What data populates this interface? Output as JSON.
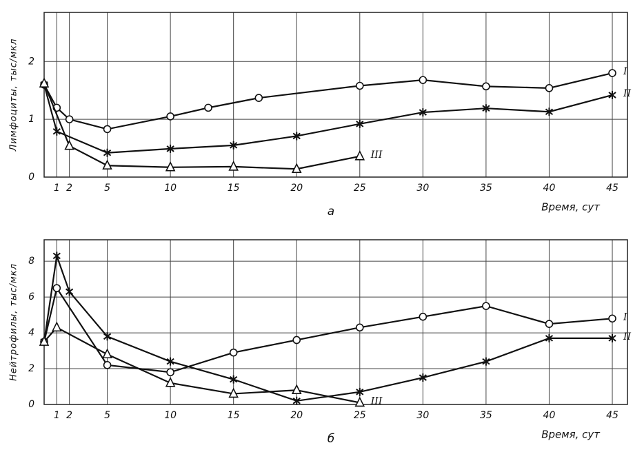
{
  "chart_data": [
    {
      "type": "line",
      "caption": "а",
      "y_label": "Лимфоциты, тыс/мкл",
      "x_label": "Время, сут",
      "xlim": [
        0,
        46.2
      ],
      "xticks": [
        1,
        2,
        5,
        10,
        15,
        20,
        25,
        30,
        35,
        40,
        45
      ],
      "ylim": [
        0,
        2.85
      ],
      "yticks": [
        0,
        1,
        2
      ],
      "grid": true,
      "series": [
        {
          "name": "I",
          "marker": "circle",
          "color": "#111",
          "x": [
            0,
            1,
            2,
            5,
            10,
            13,
            17,
            25,
            30,
            35,
            40,
            45
          ],
          "values": [
            1.6,
            1.2,
            1.0,
            0.83,
            1.05,
            1.2,
            1.37,
            1.58,
            1.68,
            1.57,
            1.54,
            1.8
          ]
        },
        {
          "name": "II",
          "marker": "star",
          "color": "#111",
          "x": [
            0,
            1,
            5,
            10,
            15,
            20,
            25,
            30,
            35,
            40,
            45
          ],
          "values": [
            1.6,
            0.79,
            0.42,
            0.49,
            0.55,
            0.71,
            0.92,
            1.12,
            1.19,
            1.13,
            1.42
          ]
        },
        {
          "name": "III",
          "marker": "triangle",
          "color": "#111",
          "x": [
            0,
            2,
            5,
            10,
            15,
            20,
            25
          ],
          "values": [
            1.62,
            0.54,
            0.2,
            0.17,
            0.18,
            0.14,
            0.36
          ]
        }
      ]
    },
    {
      "type": "line",
      "caption": "б",
      "y_label": "Нейтрофилы, тыс/мкл",
      "x_label": "Время, сут",
      "xlim": [
        0,
        46.2
      ],
      "xticks": [
        1,
        2,
        5,
        10,
        15,
        20,
        25,
        30,
        35,
        40,
        45
      ],
      "ylim": [
        0,
        9.2
      ],
      "yticks": [
        0,
        2,
        4,
        6,
        8
      ],
      "grid": true,
      "series": [
        {
          "name": "I",
          "marker": "circle",
          "color": "#111",
          "x": [
            0,
            1,
            5,
            10,
            15,
            20,
            25,
            30,
            35,
            40,
            45
          ],
          "values": [
            3.5,
            6.5,
            2.2,
            1.8,
            2.9,
            3.6,
            4.3,
            4.9,
            5.5,
            4.5,
            4.8
          ]
        },
        {
          "name": "II",
          "marker": "star",
          "color": "#111",
          "x": [
            0,
            1,
            2,
            5,
            10,
            15,
            20,
            25,
            30,
            35,
            40,
            45
          ],
          "values": [
            3.5,
            8.3,
            6.3,
            3.8,
            2.4,
            1.4,
            0.2,
            0.7,
            1.5,
            2.4,
            3.7,
            3.7
          ]
        },
        {
          "name": "III",
          "marker": "triangle",
          "color": "#111",
          "x": [
            0,
            1,
            5,
            10,
            15,
            20,
            25
          ],
          "values": [
            3.5,
            4.3,
            2.8,
            1.2,
            0.6,
            0.8,
            0.1
          ]
        }
      ]
    }
  ]
}
